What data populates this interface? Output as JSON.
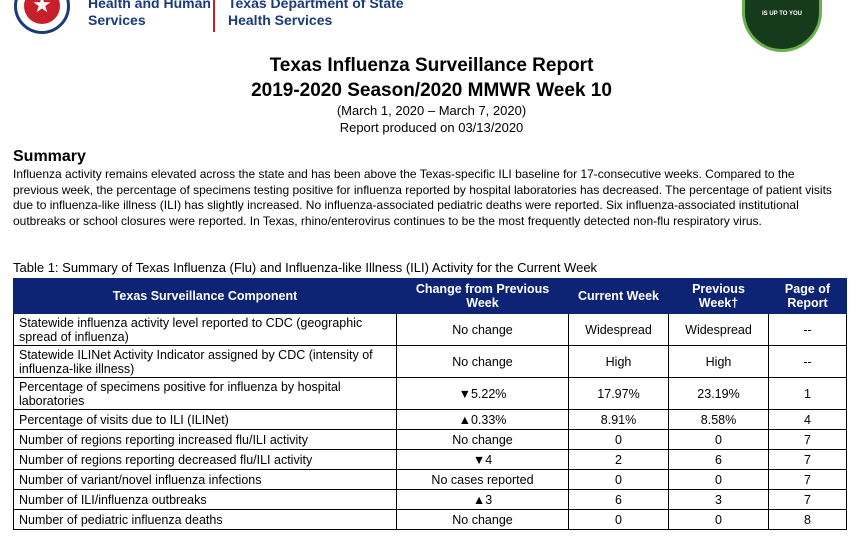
{
  "header": {
    "hhs_line1": "Health and Human",
    "hhs_line2": "Services",
    "dshs_line1": "Texas Department of State",
    "dshs_line2": "Health Services",
    "badge_text": "IS UP TO YOU",
    "colors": {
      "navy": "#1a3a7a",
      "red": "#c8202b",
      "badge_green": "#163a1c"
    }
  },
  "report": {
    "title_line1": "Texas Influenza Surveillance Report",
    "title_line2": "2019-2020 Season/2020 MMWR Week 10",
    "date_range": "(March 1, 2020 – March 7, 2020)",
    "produced": "Report produced on 03/13/2020"
  },
  "summary": {
    "heading": "Summary",
    "body": "Influenza activity remains elevated across the state and has been above the Texas-specific ILI baseline for 17-consecutive weeks. Compared to the previous week, the percentage of specimens testing positive for influenza reported by hospital laboratories has decreased. The percentage of patient visits due to influenza-like illness (ILI) has slightly increased. No influenza-associated pediatric deaths were reported. Six influenza-associated institutional outbreaks or school closures were reported.  In Texas, rhino/enterovirus continues to be the most frequently detected non-flu respiratory virus."
  },
  "table": {
    "caption": "Table 1: Summary of Texas Influenza (Flu) and Influenza-like Illness (ILI) Activity for the Current Week",
    "header_color": "#0d2475",
    "columns": [
      "Texas Surveillance Component",
      "Change from Previous Week",
      "Current Week",
      "Previous Week†",
      "Page of Report"
    ],
    "rows": [
      {
        "component": "Statewide influenza activity level reported to CDC (geographic spread of influenza)",
        "change": "No change",
        "current": "Widespread",
        "previous": "Widespread",
        "page": "--"
      },
      {
        "component": "Statewide ILINet Activity Indicator assigned by CDC (intensity of influenza-like illness)",
        "change": "No change",
        "current": "High",
        "previous": "High",
        "page": "--"
      },
      {
        "component": "Percentage of specimens positive for influenza by hospital laboratories",
        "change": "▼5.22%",
        "current": "17.97%",
        "previous": "23.19%",
        "page": "1"
      },
      {
        "component": "Percentage of visits due to ILI (ILINet)",
        "change": "▲0.33%",
        "current": "8.91%",
        "previous": "8.58%",
        "page": "4"
      },
      {
        "component": "Number of regions reporting increased flu/ILI activity",
        "change": "No change",
        "current": "0",
        "previous": "0",
        "page": "7"
      },
      {
        "component": "Number of regions reporting decreased flu/ILI activity",
        "change": "▼4",
        "current": "2",
        "previous": "6",
        "page": "7"
      },
      {
        "component": "Number of variant/novel influenza infections",
        "change": "No cases reported",
        "current": "0",
        "previous": "0",
        "page": "7"
      },
      {
        "component": "Number of ILI/influenza outbreaks",
        "change": "▲3",
        "current": "6",
        "previous": "3",
        "page": "7"
      },
      {
        "component": "Number of pediatric influenza deaths",
        "change": "No change",
        "current": "0",
        "previous": "0",
        "page": "8"
      }
    ]
  }
}
